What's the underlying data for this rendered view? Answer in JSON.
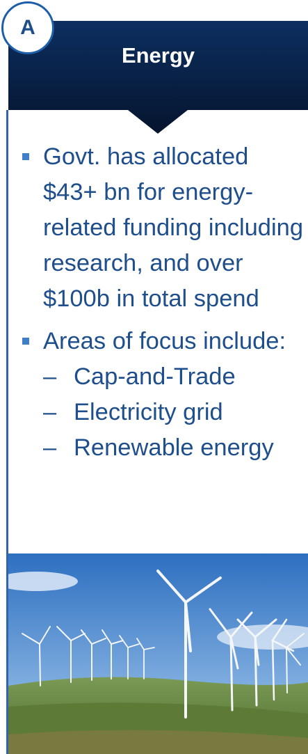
{
  "header": {
    "badge": "A",
    "title": "Energy"
  },
  "bullets": [
    {
      "text": "Govt. has allocated $43+ bn for energy-related funding including research, and over $100b in total spend"
    },
    {
      "text": "Areas of focus include:",
      "subitems": [
        "Cap-and-Trade",
        "Electricity grid",
        "Renewable energy"
      ]
    }
  ]
}
